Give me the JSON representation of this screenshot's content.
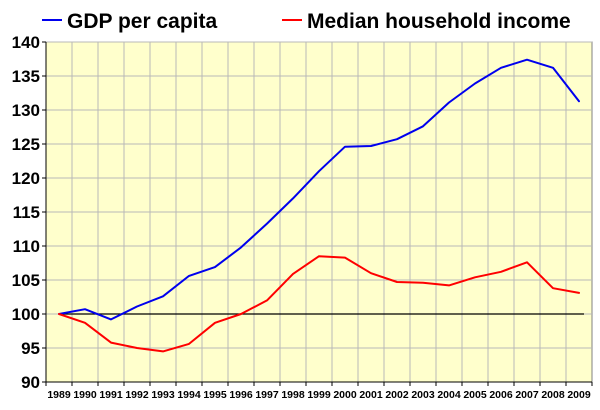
{
  "chart_data": {
    "type": "line",
    "x": [
      "1989",
      "1990",
      "1991",
      "1992",
      "1993",
      "1994",
      "1995",
      "1996",
      "1997",
      "1998",
      "1999",
      "2000",
      "2001",
      "2002",
      "2003",
      "2004",
      "2005",
      "2006",
      "2007",
      "2008",
      "2009"
    ],
    "series": [
      {
        "name": "GDP per capita",
        "color": "#0000ee",
        "values": [
          100.0,
          100.7,
          99.2,
          101.1,
          102.6,
          105.6,
          106.9,
          109.8,
          113.3,
          117.0,
          121.0,
          124.6,
          124.7,
          125.7,
          127.6,
          131.1,
          133.9,
          136.2,
          137.4,
          136.2,
          131.3
        ]
      },
      {
        "name": "Median household income",
        "color": "#ff0000",
        "values": [
          100.0,
          98.7,
          95.8,
          95.0,
          94.5,
          95.6,
          98.7,
          100.0,
          102.0,
          105.9,
          108.5,
          108.3,
          106.0,
          104.7,
          104.6,
          104.2,
          105.4,
          106.2,
          107.6,
          103.8,
          103.1
        ]
      }
    ],
    "reference_line": 100,
    "ylim": [
      90,
      140
    ],
    "yticks": [
      "90",
      "95",
      "100",
      "105",
      "110",
      "115",
      "120",
      "125",
      "130",
      "135",
      "140"
    ],
    "grid": true,
    "legend": "top",
    "plot_background": "#ffffcc",
    "grid_color": "#b8b8b8"
  }
}
